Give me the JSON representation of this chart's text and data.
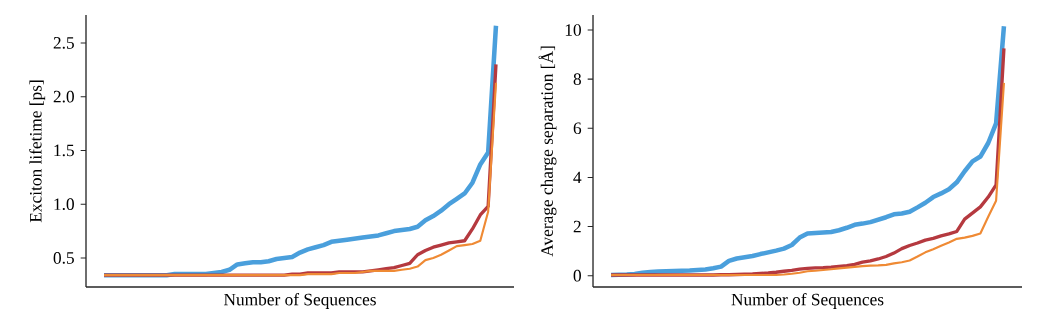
{
  "chart_data": [
    {
      "type": "line",
      "xlabel": "Number of Sequences",
      "ylabel": "Exciton lifetime [ps]",
      "tick_labels": "y",
      "categories": [
        null,
        null,
        null,
        null,
        null,
        null,
        null,
        null,
        null,
        null,
        null,
        null,
        null,
        null,
        null,
        null,
        null,
        null,
        null,
        null,
        null,
        null,
        null,
        null,
        null,
        null,
        null,
        null,
        null,
        null,
        null,
        null,
        null,
        null,
        null,
        null,
        null,
        null,
        null,
        null,
        null,
        null,
        null,
        null,
        null,
        null,
        null,
        null,
        null,
        null,
        null
      ],
      "ylim": [
        0.23,
        2.76
      ],
      "yticks": [
        0.5,
        {
          "value": 1.0,
          "label": "1.0"
        },
        1.5,
        {
          "value": 2.0,
          "label": "2.0"
        },
        2.5
      ],
      "series": [
        {
          "color": "#ef8a34",
          "values": [
            0.34,
            0.34,
            0.34,
            0.34,
            0.34,
            0.34,
            0.34,
            0.34,
            0.34,
            0.34,
            0.34,
            0.34,
            0.34,
            0.34,
            0.34,
            0.34,
            0.34,
            0.34,
            0.34,
            0.34,
            0.34,
            0.34,
            0.34,
            0.34,
            0.34,
            0.34,
            0.35,
            0.35,
            0.35,
            0.35,
            0.36,
            0.36,
            0.36,
            0.37,
            0.38,
            0.38,
            0.38,
            0.38,
            0.39,
            0.4,
            0.42,
            0.48,
            0.5,
            0.53,
            0.57,
            0.61,
            0.62,
            0.63,
            0.66,
            0.93,
            2.13
          ]
        },
        {
          "color": "#b5393f",
          "values": [
            0.34,
            0.34,
            0.34,
            0.34,
            0.34,
            0.34,
            0.34,
            0.34,
            0.34,
            0.34,
            0.34,
            0.34,
            0.34,
            0.34,
            0.34,
            0.34,
            0.34,
            0.34,
            0.34,
            0.34,
            0.34,
            0.34,
            0.34,
            0.34,
            0.35,
            0.35,
            0.36,
            0.36,
            0.36,
            0.36,
            0.37,
            0.37,
            0.37,
            0.37,
            0.38,
            0.39,
            0.4,
            0.41,
            0.43,
            0.45,
            0.53,
            0.57,
            0.6,
            0.62,
            0.64,
            0.65,
            0.66,
            0.77,
            0.9,
            0.98,
            2.3
          ]
        },
        {
          "color": "#4a9fdc",
          "values": [
            0.34,
            0.34,
            0.34,
            0.34,
            0.34,
            0.34,
            0.34,
            0.34,
            0.34,
            0.35,
            0.35,
            0.35,
            0.35,
            0.35,
            0.36,
            0.37,
            0.39,
            0.44,
            0.45,
            0.46,
            0.46,
            0.47,
            0.49,
            0.5,
            0.51,
            0.55,
            0.58,
            0.6,
            0.62,
            0.65,
            0.66,
            0.67,
            0.68,
            0.69,
            0.7,
            0.71,
            0.73,
            0.75,
            0.76,
            0.77,
            0.79,
            0.85,
            0.89,
            0.94,
            1.0,
            1.05,
            1.1,
            1.2,
            1.37,
            1.48,
            2.66
          ]
        }
      ]
    },
    {
      "type": "line",
      "xlabel": "Number of Sequences",
      "ylabel": "Average charge separation [Å]",
      "tick_labels": "y",
      "categories": [
        null,
        null,
        null,
        null,
        null,
        null,
        null,
        null,
        null,
        null,
        null,
        null,
        null,
        null,
        null,
        null,
        null,
        null,
        null,
        null,
        null,
        null,
        null,
        null,
        null,
        null,
        null,
        null,
        null,
        null,
        null,
        null,
        null,
        null,
        null,
        null,
        null,
        null,
        null,
        null,
        null,
        null,
        null,
        null,
        null,
        null,
        null,
        null,
        null,
        null,
        null
      ],
      "ylim": [
        -0.46,
        10.61
      ],
      "yticks": [
        0,
        2,
        4,
        6,
        8,
        10
      ],
      "series": [
        {
          "color": "#ef8a34",
          "values": [
            0.03,
            0.03,
            0.03,
            0.03,
            0.03,
            0.03,
            0.03,
            0.03,
            0.03,
            0.03,
            0.03,
            0.03,
            0.03,
            0.03,
            0.03,
            0.03,
            0.03,
            0.03,
            0.03,
            0.03,
            0.03,
            0.03,
            0.05,
            0.08,
            0.12,
            0.18,
            0.2,
            0.23,
            0.26,
            0.3,
            0.33,
            0.36,
            0.39,
            0.41,
            0.42,
            0.44,
            0.5,
            0.55,
            0.62,
            0.78,
            0.95,
            1.08,
            1.22,
            1.35,
            1.5,
            1.55,
            1.62,
            1.72,
            2.4,
            3.05,
            7.85
          ]
        },
        {
          "color": "#b5393f",
          "values": [
            0.03,
            0.03,
            0.03,
            0.03,
            0.03,
            0.03,
            0.03,
            0.03,
            0.03,
            0.03,
            0.03,
            0.03,
            0.03,
            0.03,
            0.04,
            0.04,
            0.05,
            0.06,
            0.07,
            0.09,
            0.11,
            0.14,
            0.18,
            0.22,
            0.27,
            0.3,
            0.32,
            0.33,
            0.35,
            0.38,
            0.41,
            0.46,
            0.55,
            0.6,
            0.68,
            0.78,
            0.92,
            1.1,
            1.23,
            1.33,
            1.45,
            1.52,
            1.62,
            1.7,
            1.8,
            2.3,
            2.55,
            2.8,
            3.2,
            3.7,
            9.25
          ]
        },
        {
          "color": "#4a9fdc",
          "values": [
            0.03,
            0.04,
            0.05,
            0.07,
            0.12,
            0.15,
            0.17,
            0.18,
            0.19,
            0.2,
            0.21,
            0.23,
            0.25,
            0.3,
            0.37,
            0.6,
            0.7,
            0.75,
            0.8,
            0.88,
            0.95,
            1.02,
            1.1,
            1.25,
            1.55,
            1.72,
            1.74,
            1.76,
            1.78,
            1.85,
            1.95,
            2.07,
            2.12,
            2.18,
            2.28,
            2.38,
            2.5,
            2.53,
            2.6,
            2.78,
            2.97,
            3.2,
            3.35,
            3.52,
            3.8,
            4.25,
            4.65,
            4.85,
            5.4,
            6.2,
            10.15
          ]
        }
      ]
    }
  ]
}
